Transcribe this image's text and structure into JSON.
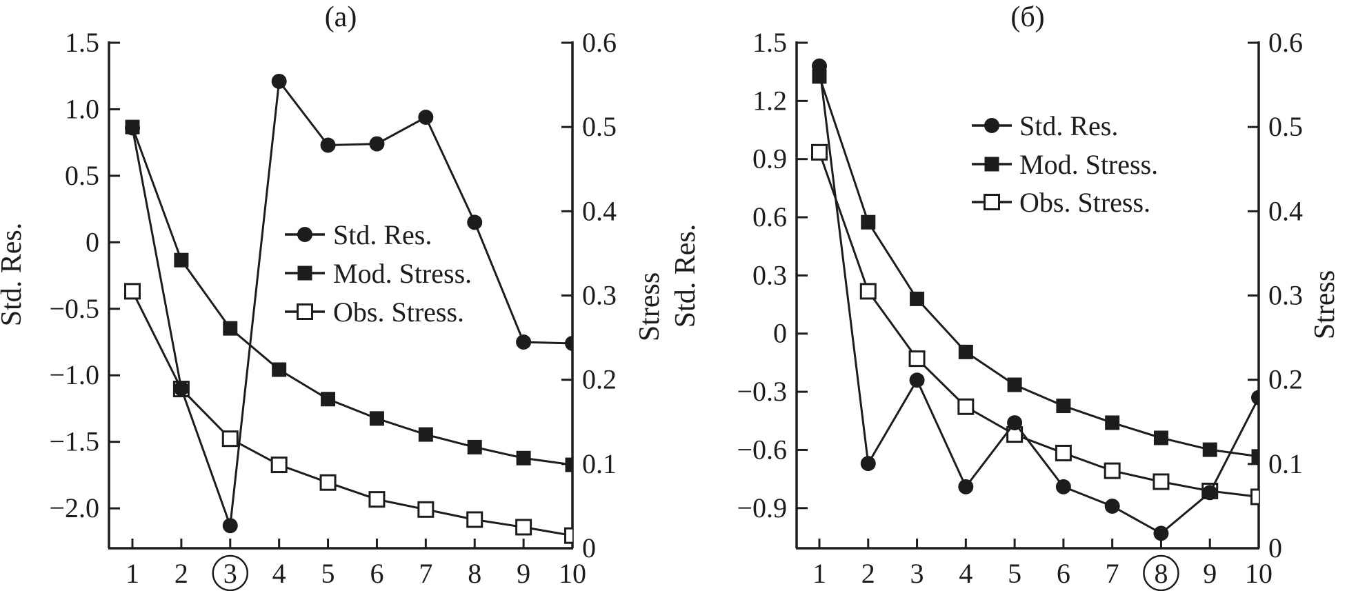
{
  "figure_title": "",
  "accent_color": "#1c1c1c",
  "background_color": "#ffffff",
  "chart_data": [
    {
      "type": "line",
      "panel": "a",
      "title": "(a)",
      "x": [
        1,
        2,
        3,
        4,
        5,
        6,
        7,
        8,
        9,
        10
      ],
      "x_tick_labels": [
        "1",
        "2",
        "3",
        "4",
        "5",
        "6",
        "7",
        "8",
        "9",
        "10"
      ],
      "circled_x_tick": 3,
      "grid": false,
      "legend_position": "center-of-plot",
      "left_axis": {
        "label": "Std. Res.",
        "tick_labels": [
          "1.5",
          "1.0",
          "0.5",
          "0",
          "−0.5",
          "−1.0",
          "−1.5",
          "−2.0"
        ],
        "tick_values": [
          1.5,
          1.0,
          0.5,
          0,
          -0.5,
          -1.0,
          -1.5,
          -2.0
        ],
        "range": [
          -2.3,
          1.5
        ]
      },
      "right_axis": {
        "label": "Stress",
        "tick_labels": [
          "0.6",
          "0.5",
          "0.4",
          "0.3",
          "0.2",
          "0.1",
          "0"
        ],
        "tick_values": [
          0.6,
          0.5,
          0.4,
          0.3,
          0.2,
          0.1,
          0
        ],
        "range": [
          0,
          0.6
        ]
      },
      "series": [
        {
          "name": "Std. Res.",
          "marker": "filled-circle",
          "axis": "left",
          "values": [
            0.86,
            -1.1,
            -2.13,
            1.21,
            0.73,
            0.74,
            0.94,
            0.15,
            -0.75,
            -0.76
          ]
        },
        {
          "name": "Mod. Stress.",
          "marker": "filled-square",
          "axis": "right",
          "values": [
            0.5,
            0.342,
            0.261,
            0.212,
            0.177,
            0.154,
            0.135,
            0.12,
            0.107,
            0.099
          ]
        },
        {
          "name": "Obs. Stress.",
          "marker": "open-square",
          "axis": "right",
          "values": [
            0.305,
            0.189,
            0.13,
            0.099,
            0.078,
            0.058,
            0.046,
            0.034,
            0.025,
            0.015
          ]
        }
      ],
      "legend": {
        "entries": [
          "Std. Res.",
          "Mod. Stress.",
          "Obs. Stress."
        ]
      }
    },
    {
      "type": "line",
      "panel": "b",
      "title": "(б)",
      "x": [
        1,
        2,
        3,
        4,
        5,
        6,
        7,
        8,
        9,
        10
      ],
      "x_tick_labels": [
        "1",
        "2",
        "3",
        "4",
        "5",
        "6",
        "7",
        "8",
        "9",
        "10"
      ],
      "circled_x_tick": 8,
      "grid": false,
      "legend_position": "upper-right-of-plot",
      "left_axis": {
        "label": "Std. Res.",
        "tick_labels": [
          "1.5",
          "1.2",
          "0.9",
          "0.6",
          "0.3",
          "0",
          "−0.3",
          "−0.6",
          "−0.9"
        ],
        "tick_values": [
          1.5,
          1.2,
          0.9,
          0.6,
          0.3,
          0,
          -0.3,
          -0.6,
          -0.9
        ],
        "range": [
          -1.107,
          1.5
        ]
      },
      "right_axis": {
        "label": "Stress",
        "tick_labels": [
          "0.6",
          "0.5",
          "0.4",
          "0.3",
          "0.2",
          "0.1",
          "0"
        ],
        "tick_values": [
          0.6,
          0.5,
          0.4,
          0.3,
          0.2,
          0.1,
          0
        ],
        "range": [
          0,
          0.6
        ]
      },
      "series": [
        {
          "name": "Std. Res.",
          "marker": "filled-circle",
          "axis": "left",
          "values": [
            1.38,
            -0.67,
            -0.24,
            -0.79,
            -0.46,
            -0.79,
            -0.89,
            -1.03,
            -0.82,
            -0.33
          ]
        },
        {
          "name": "Mod. Stress.",
          "marker": "filled-square",
          "axis": "right",
          "values": [
            0.56,
            0.387,
            0.296,
            0.233,
            0.194,
            0.169,
            0.149,
            0.131,
            0.117,
            0.109
          ]
        },
        {
          "name": "Obs. Stress.",
          "marker": "open-square",
          "axis": "right",
          "values": [
            0.47,
            0.305,
            0.225,
            0.168,
            0.135,
            0.113,
            0.092,
            0.079,
            0.068,
            0.061
          ]
        }
      ],
      "legend": {
        "entries": [
          "Std. Res.",
          "Mod. Stress.",
          "Obs. Stress."
        ]
      }
    }
  ]
}
